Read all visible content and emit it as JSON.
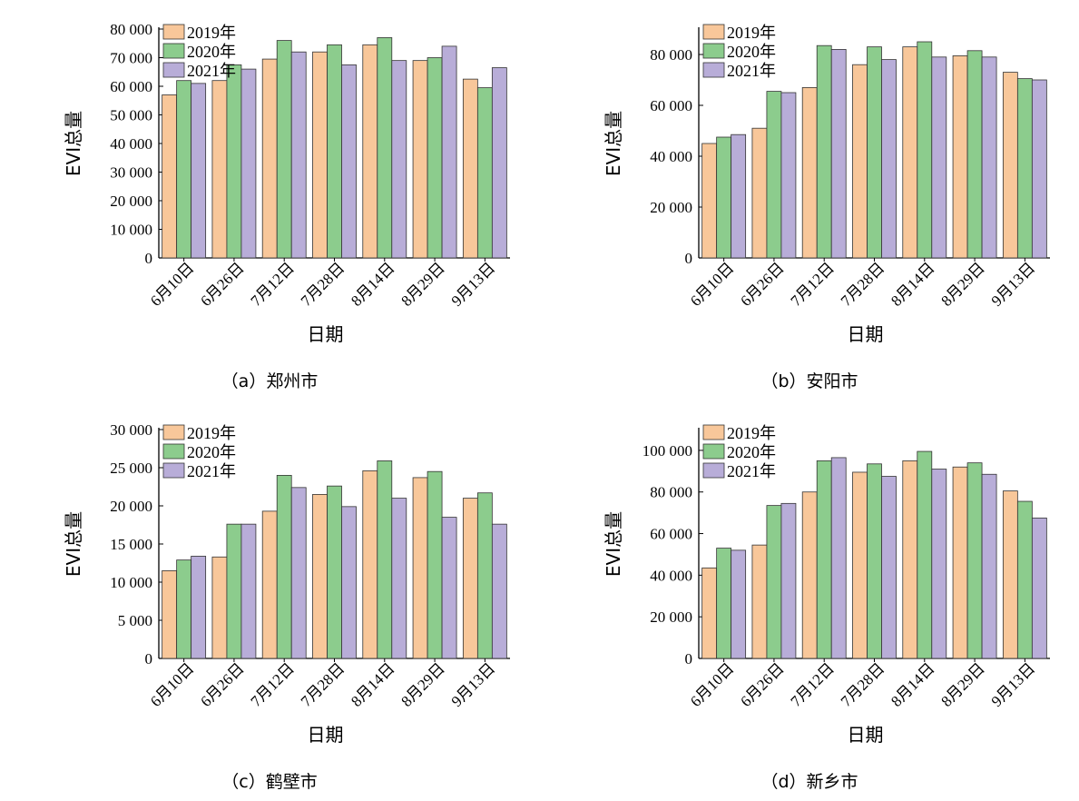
{
  "colors": {
    "2019": "#f8c79a",
    "2020": "#8ccc8d",
    "2021": "#b8add8",
    "stroke": "#333333"
  },
  "chart_data": [
    {
      "type": "bar",
      "caption": "（a）郑州市",
      "xlabel": "日期",
      "ylabel": "EVI总量",
      "ylim": [
        0,
        80000
      ],
      "yticks": [
        0,
        10000,
        20000,
        30000,
        40000,
        50000,
        60000,
        70000,
        80000
      ],
      "ytick_labels": [
        "0",
        "10 000",
        "20 000",
        "30 000",
        "40 000",
        "50 000",
        "60 000",
        "70 000",
        "80 000"
      ],
      "categories": [
        "6月10日",
        "6月26日",
        "7月12日",
        "7月28日",
        "8月14日",
        "8月29日",
        "9月13日"
      ],
      "series": [
        {
          "name": "2019年",
          "values": [
            57000,
            62000,
            69500,
            72000,
            74500,
            69000,
            62500
          ]
        },
        {
          "name": "2020年",
          "values": [
            62000,
            67500,
            76000,
            74500,
            77000,
            70000,
            59500
          ]
        },
        {
          "name": "2021年",
          "values": [
            61000,
            66000,
            72000,
            67500,
            69000,
            74000,
            66500
          ]
        }
      ],
      "legend": "top-left"
    },
    {
      "type": "bar",
      "caption": "（b）安阳市",
      "xlabel": "日期",
      "ylabel": "EVI总量",
      "ylim": [
        0,
        90000
      ],
      "yticks": [
        0,
        20000,
        40000,
        60000,
        80000
      ],
      "ytick_labels": [
        "0",
        "20 000",
        "40 000",
        "60 000",
        "80 000"
      ],
      "categories": [
        "6月10日",
        "6月26日",
        "7月12日",
        "7月28日",
        "8月14日",
        "8月29日",
        "9月13日"
      ],
      "series": [
        {
          "name": "2019年",
          "values": [
            45000,
            51000,
            67000,
            76000,
            83000,
            79500,
            73000
          ]
        },
        {
          "name": "2020年",
          "values": [
            47500,
            65500,
            83500,
            83000,
            85000,
            81500,
            70500
          ]
        },
        {
          "name": "2021年",
          "values": [
            48500,
            65000,
            82000,
            78000,
            79000,
            79000,
            70000
          ]
        }
      ],
      "legend": "top-left"
    },
    {
      "type": "bar",
      "caption": "（c）鹤壁市",
      "xlabel": "日期",
      "ylabel": "EVI总量",
      "ylim": [
        0,
        30000
      ],
      "yticks": [
        0,
        5000,
        10000,
        15000,
        20000,
        25000,
        30000
      ],
      "ytick_labels": [
        "0",
        "5 000",
        "10 000",
        "15 000",
        "20 000",
        "25 000",
        "30 000"
      ],
      "categories": [
        "6月10日",
        "6月26日",
        "7月12日",
        "7月28日",
        "8月14日",
        "8月29日",
        "9月13日"
      ],
      "series": [
        {
          "name": "2019年",
          "values": [
            11500,
            13300,
            19300,
            21500,
            24600,
            23700,
            21000
          ]
        },
        {
          "name": "2020年",
          "values": [
            12900,
            17600,
            24000,
            22600,
            25900,
            24500,
            21700
          ]
        },
        {
          "name": "2021年",
          "values": [
            13400,
            17600,
            22400,
            19900,
            21000,
            18500,
            17600
          ]
        }
      ],
      "legend": "top-left"
    },
    {
      "type": "bar",
      "caption": "（d）新乡市",
      "xlabel": "日期",
      "ylabel": "EVI总量",
      "ylim": [
        0,
        110000
      ],
      "yticks": [
        0,
        20000,
        40000,
        60000,
        80000,
        100000
      ],
      "ytick_labels": [
        "0",
        "20 000",
        "40 000",
        "60 000",
        "80 000",
        "100 000"
      ],
      "categories": [
        "6月10日",
        "6月26日",
        "7月12日",
        "7月28日",
        "8月14日",
        "8月29日",
        "9月13日"
      ],
      "series": [
        {
          "name": "2019年",
          "values": [
            43500,
            54500,
            80000,
            89500,
            95000,
            92000,
            80500
          ]
        },
        {
          "name": "2020年",
          "values": [
            53000,
            73500,
            95000,
            93500,
            99500,
            94000,
            75500
          ]
        },
        {
          "name": "2021年",
          "values": [
            52000,
            74500,
            96500,
            87500,
            91000,
            88500,
            67500
          ]
        }
      ],
      "legend": "top-left"
    }
  ]
}
